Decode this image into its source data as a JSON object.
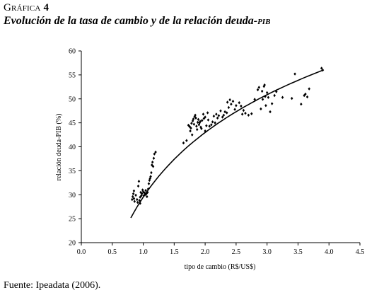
{
  "heading": {
    "label_word": "Gráfica",
    "label_number": "4",
    "title_main": "Evolución de la tasa de cambio y de la relación deuda-",
    "title_smallcaps": "pib"
  },
  "source": "Fuente: Ipeadata (2006).",
  "chart_data": {
    "type": "scatter",
    "title": "Evolución de la tasa de cambio y de la relación deuda-PIB",
    "xlabel": "tipo de cambio (R$/US$)",
    "ylabel": "relación deuda-PIB (%)",
    "xlim": [
      0.0,
      4.5
    ],
    "ylim": [
      20,
      60
    ],
    "xticks": [
      "0.0",
      "0.5",
      "1.0",
      "1.5",
      "2.0",
      "2.5",
      "3.0",
      "3.5",
      "4.0",
      "4.5"
    ],
    "yticks": [
      "20",
      "25",
      "30",
      "35",
      "40",
      "45",
      "50",
      "55",
      "60"
    ],
    "grid": false,
    "legend": "none",
    "series": [
      {
        "marker": "diamond",
        "color": "#000000",
        "points": [
          [
            0.82,
            29.0
          ],
          [
            0.83,
            29.6
          ],
          [
            0.84,
            30.2
          ],
          [
            0.85,
            30.8
          ],
          [
            0.85,
            29.2
          ],
          [
            0.86,
            28.6
          ],
          [
            0.88,
            29.9
          ],
          [
            0.9,
            29.0
          ],
          [
            0.91,
            28.4
          ],
          [
            0.92,
            31.8
          ],
          [
            0.93,
            32.8
          ],
          [
            0.94,
            28.8
          ],
          [
            0.95,
            28.2
          ],
          [
            0.95,
            29.5
          ],
          [
            0.96,
            30.5
          ],
          [
            0.97,
            29.8
          ],
          [
            0.98,
            30.2
          ],
          [
            0.99,
            31.0
          ],
          [
            1.0,
            30.6
          ],
          [
            1.01,
            29.8
          ],
          [
            1.02,
            30.4
          ],
          [
            1.03,
            30.0
          ],
          [
            1.04,
            30.9
          ],
          [
            1.05,
            30.2
          ],
          [
            1.06,
            29.6
          ],
          [
            1.07,
            30.5
          ],
          [
            1.08,
            31.2
          ],
          [
            1.09,
            32.3
          ],
          [
            1.1,
            33.0
          ],
          [
            1.11,
            33.4
          ],
          [
            1.12,
            33.8
          ],
          [
            1.13,
            34.6
          ],
          [
            1.14,
            36.2
          ],
          [
            1.15,
            36.8
          ],
          [
            1.16,
            35.9
          ],
          [
            1.17,
            37.6
          ],
          [
            1.18,
            38.5
          ],
          [
            1.2,
            38.9
          ],
          [
            1.65,
            40.8
          ],
          [
            1.7,
            41.3
          ],
          [
            1.73,
            44.5
          ],
          [
            1.75,
            44.2
          ],
          [
            1.76,
            43.3
          ],
          [
            1.77,
            43.9
          ],
          [
            1.78,
            44.9
          ],
          [
            1.79,
            42.5
          ],
          [
            1.8,
            45.4
          ],
          [
            1.81,
            45.8
          ],
          [
            1.82,
            44.7
          ],
          [
            1.83,
            46.3
          ],
          [
            1.84,
            46.6
          ],
          [
            1.85,
            46.0
          ],
          [
            1.86,
            44.3
          ],
          [
            1.87,
            43.6
          ],
          [
            1.88,
            45.1
          ],
          [
            1.89,
            45.7
          ],
          [
            1.9,
            44.6
          ],
          [
            1.91,
            45.0
          ],
          [
            1.92,
            45.3
          ],
          [
            1.93,
            44.1
          ],
          [
            1.94,
            43.8
          ],
          [
            1.95,
            45.5
          ],
          [
            1.97,
            46.8
          ],
          [
            1.98,
            45.9
          ],
          [
            2.0,
            46.2
          ],
          [
            2.0,
            43.3
          ],
          [
            2.02,
            44.4
          ],
          [
            2.04,
            47.1
          ],
          [
            2.05,
            45.6
          ],
          [
            2.07,
            44.3
          ],
          [
            2.1,
            44.6
          ],
          [
            2.12,
            45.2
          ],
          [
            2.14,
            46.4
          ],
          [
            2.16,
            45.0
          ],
          [
            2.18,
            46.8
          ],
          [
            2.2,
            46.0
          ],
          [
            2.22,
            46.5
          ],
          [
            2.25,
            47.5
          ],
          [
            2.28,
            46.2
          ],
          [
            2.3,
            46.6
          ],
          [
            2.32,
            47.3
          ],
          [
            2.35,
            47.1
          ],
          [
            2.36,
            49.3
          ],
          [
            2.38,
            48.2
          ],
          [
            2.4,
            49.8
          ],
          [
            2.42,
            48.9
          ],
          [
            2.45,
            49.5
          ],
          [
            2.48,
            47.8
          ],
          [
            2.5,
            48.6
          ],
          [
            2.55,
            49.2
          ],
          [
            2.58,
            48.5
          ],
          [
            2.6,
            46.8
          ],
          [
            2.62,
            47.6
          ],
          [
            2.65,
            47.0
          ],
          [
            2.7,
            46.6
          ],
          [
            2.75,
            46.9
          ],
          [
            2.8,
            49.9
          ],
          [
            2.85,
            51.9
          ],
          [
            2.87,
            52.4
          ],
          [
            2.9,
            47.9
          ],
          [
            2.92,
            51.6
          ],
          [
            2.93,
            49.9
          ],
          [
            2.95,
            52.6
          ],
          [
            2.96,
            52.9
          ],
          [
            2.97,
            50.5
          ],
          [
            2.98,
            48.6
          ],
          [
            3.0,
            51.3
          ],
          [
            3.02,
            50.3
          ],
          [
            3.05,
            47.3
          ],
          [
            3.08,
            49.0
          ],
          [
            3.12,
            50.7
          ],
          [
            3.15,
            51.5
          ],
          [
            3.25,
            50.3
          ],
          [
            3.4,
            50.1
          ],
          [
            3.45,
            55.2
          ],
          [
            3.55,
            48.9
          ],
          [
            3.6,
            50.7
          ],
          [
            3.62,
            51.0
          ],
          [
            3.65,
            50.4
          ],
          [
            3.68,
            52.1
          ],
          [
            3.88,
            56.4
          ],
          [
            3.9,
            56.0
          ]
        ]
      }
    ],
    "trend_line": {
      "type": "logarithmic",
      "a": 29.5,
      "b": 19.45
    }
  }
}
